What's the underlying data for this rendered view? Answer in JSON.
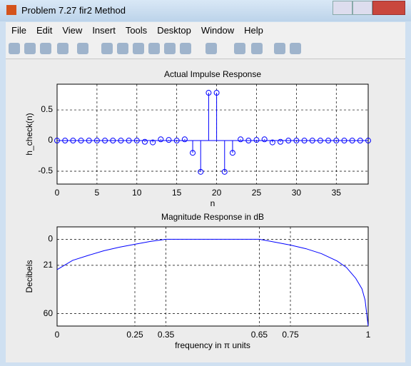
{
  "window": {
    "title": "Problem 7.27 fir2 Method",
    "menu": [
      "File",
      "Edit",
      "View",
      "Insert",
      "Tools",
      "Desktop",
      "Window",
      "Help"
    ]
  },
  "chart_data": [
    {
      "type": "stem",
      "title": "Actual Impulse Response",
      "xlabel": "n",
      "ylabel": "h_check(n)",
      "color": "#0000ff",
      "x": [
        0,
        1,
        2,
        3,
        4,
        5,
        6,
        7,
        8,
        9,
        10,
        11,
        12,
        13,
        14,
        15,
        16,
        17,
        18,
        19,
        20,
        21,
        22,
        23,
        24,
        25,
        26,
        27,
        28,
        29,
        30,
        31,
        32,
        33,
        34,
        35,
        36,
        37,
        38,
        39
      ],
      "values": [
        0,
        0,
        0,
        0,
        0,
        0,
        0,
        0,
        0,
        0,
        0,
        -0.02,
        -0.03,
        0.02,
        0.01,
        0,
        0.02,
        -0.2,
        -0.51,
        0.78,
        0.78,
        -0.51,
        -0.2,
        0.02,
        0,
        0.01,
        0.02,
        -0.03,
        -0.02,
        0,
        0,
        0,
        0,
        0,
        0,
        0,
        0,
        0,
        0,
        0
      ],
      "xlim": [
        0,
        39
      ],
      "ylim": [
        -0.71,
        0.92
      ],
      "xticks": [
        0,
        5,
        10,
        15,
        20,
        25,
        30,
        35
      ],
      "yticks": [
        -0.5,
        0,
        0.5
      ],
      "grid": true
    },
    {
      "type": "line",
      "title": "Magnitude Response in dB",
      "xlabel": "frequency in π units",
      "ylabel": "Decibels",
      "color": "#0000ff",
      "x": [
        0,
        0.05,
        0.1,
        0.15,
        0.2,
        0.25,
        0.3,
        0.35,
        0.4,
        0.5,
        0.6,
        0.65,
        0.7,
        0.75,
        0.8,
        0.85,
        0.9,
        0.93,
        0.96,
        0.98,
        0.99,
        1
      ],
      "values": [
        -24.5,
        -17,
        -13,
        -9.3,
        -6.4,
        -4,
        -1.7,
        0,
        0,
        0,
        0,
        0,
        -2.3,
        -4.7,
        -7.6,
        -11.6,
        -17.5,
        -22.7,
        -31.5,
        -40,
        -49,
        -70
      ],
      "xlim": [
        0,
        1
      ],
      "ylim": [
        -70,
        10
      ],
      "xticks": [
        0,
        0.25,
        0.35,
        0.65,
        0.75,
        1
      ],
      "yticks": [
        {
          "value": -60,
          "label": "60"
        },
        {
          "value": -21,
          "label": "21"
        },
        0
      ],
      "grid": true
    }
  ]
}
